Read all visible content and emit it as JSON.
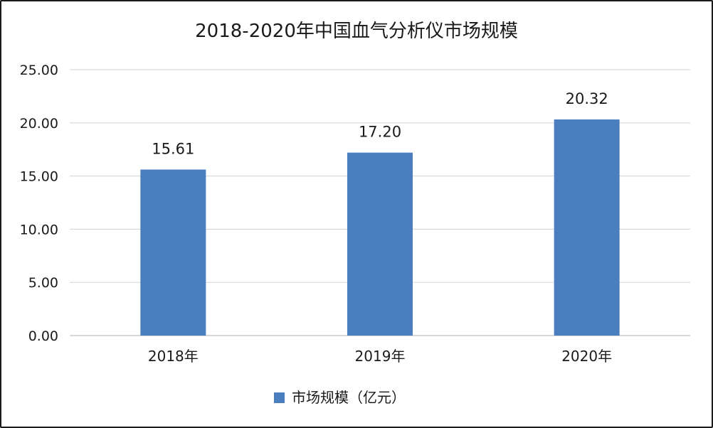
{
  "chart_data": {
    "type": "bar",
    "title": "2018-2020年中国血气分析仪市场规模",
    "categories": [
      "2018年",
      "2019年",
      "2020年"
    ],
    "series": [
      {
        "name": "市场规模（亿元）",
        "values": [
          15.61,
          17.2,
          20.32
        ]
      }
    ],
    "data_labels": [
      "15.61",
      "17.20",
      "20.32"
    ],
    "y_ticks": [
      "0.00",
      "5.00",
      "10.00",
      "15.00",
      "20.00",
      "25.00"
    ],
    "ylim": [
      0,
      25
    ],
    "grid": true,
    "legend_position": "bottom",
    "colors": {
      "bar": "#4a7ebf",
      "grid": "#d9d9d9",
      "axis": "#bfbfbf"
    }
  }
}
